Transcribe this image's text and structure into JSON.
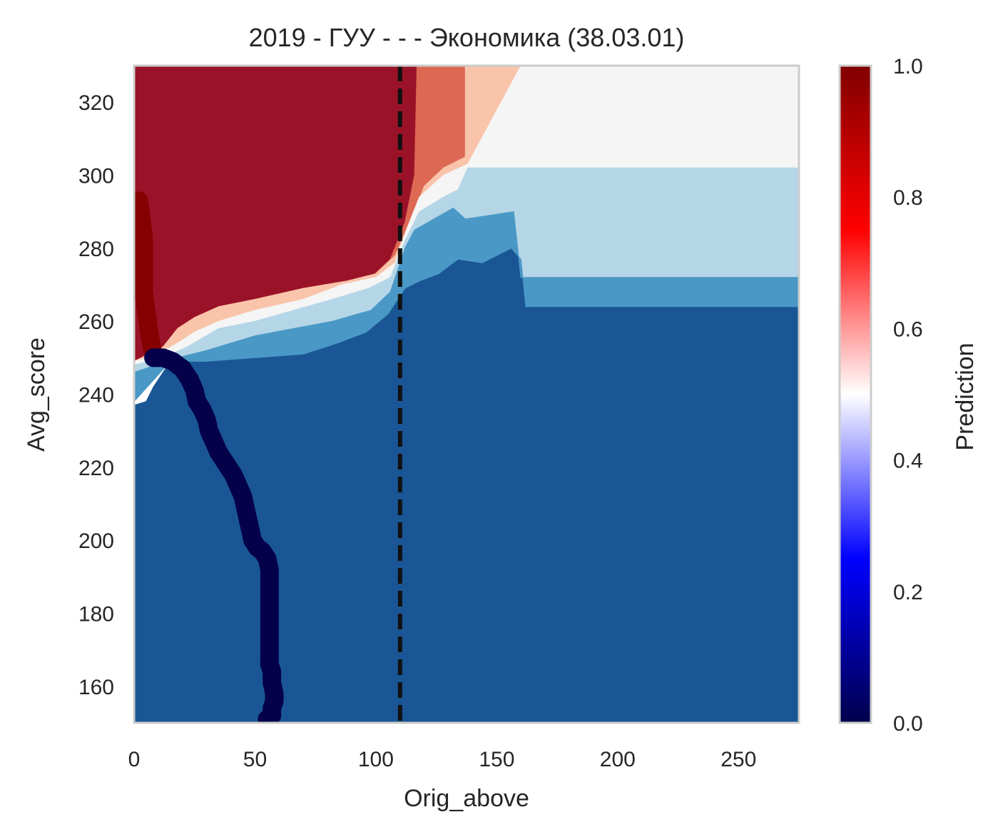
{
  "chart_data": {
    "type": "heatmap",
    "title": "2019 - ГУУ - - - Экономика (38.03.01)",
    "xlabel": "Orig_above",
    "ylabel": "Avg_score",
    "colorbar_label": "Prediction",
    "xlim": [
      0,
      275
    ],
    "ylim": [
      150,
      330
    ],
    "x_ticks": [
      0,
      50,
      100,
      150,
      200,
      250
    ],
    "y_ticks": [
      160,
      180,
      200,
      220,
      240,
      260,
      280,
      300,
      320
    ],
    "colorbar_ticks": [
      "0.0",
      "0.2",
      "0.4",
      "0.6",
      "0.8",
      "1.0"
    ],
    "colorbar_range": [
      0,
      1
    ],
    "grid": false,
    "colors": {
      "level_1": "#1a5695",
      "level_2": "#4a98c5",
      "level_3": "#b5d6e7",
      "level_4": "#f5f5f5",
      "level_5": "#f9c4aa",
      "level_6": "#dd6854",
      "level_7": "#9a1228",
      "threshold_line": "#111111",
      "points": "#05004a",
      "left_edge_points": "#850000",
      "frame": "#cccccc"
    },
    "threshold_x": 110,
    "colorbar_gradient": [
      "#00004c",
      "#0000ff",
      "#ffffff",
      "#ff0000",
      "#800000"
    ],
    "regions": [
      {
        "name": "level_7",
        "polygon": [
          [
            0,
            330
          ],
          [
            117,
            330
          ],
          [
            116,
            300
          ],
          [
            112,
            287
          ],
          [
            109,
            282
          ],
          [
            106,
            277
          ],
          [
            98,
            272
          ],
          [
            86,
            270
          ],
          [
            68,
            268
          ],
          [
            48,
            264
          ],
          [
            35,
            263
          ],
          [
            25,
            260
          ],
          [
            18,
            256
          ],
          [
            12,
            252
          ],
          [
            5,
            250
          ],
          [
            0,
            249
          ]
        ]
      },
      {
        "name": "level_6",
        "polygon": [
          [
            117,
            330
          ],
          [
            137,
            330
          ],
          [
            137,
            305
          ],
          [
            128,
            302
          ],
          [
            120,
            297
          ],
          [
            116,
            290
          ],
          [
            112,
            284
          ],
          [
            108,
            278
          ],
          [
            100,
            273
          ],
          [
            88,
            271
          ],
          [
            70,
            269
          ],
          [
            50,
            266
          ],
          [
            35,
            264
          ],
          [
            25,
            261
          ],
          [
            18,
            258
          ],
          [
            12,
            253
          ],
          [
            0,
            249
          ],
          [
            0,
            249
          ],
          [
            5,
            250
          ],
          [
            12,
            252
          ],
          [
            18,
            256
          ],
          [
            25,
            260
          ],
          [
            35,
            263
          ],
          [
            48,
            264
          ],
          [
            68,
            268
          ],
          [
            86,
            270
          ],
          [
            98,
            272
          ],
          [
            106,
            277
          ],
          [
            109,
            282
          ],
          [
            112,
            287
          ],
          [
            116,
            300
          ]
        ]
      },
      {
        "name": "level_5",
        "polygon": [
          [
            137,
            330
          ],
          [
            160,
            330
          ],
          [
            160,
            303
          ],
          [
            138,
            303
          ],
          [
            128,
            300
          ],
          [
            118,
            294
          ],
          [
            112,
            284
          ],
          [
            108,
            276
          ],
          [
            100,
            272
          ],
          [
            86,
            270
          ],
          [
            70,
            266
          ],
          [
            50,
            263
          ],
          [
            35,
            260
          ],
          [
            25,
            257
          ],
          [
            18,
            254
          ],
          [
            10,
            251
          ],
          [
            0,
            249
          ],
          [
            0,
            249
          ],
          [
            12,
            253
          ],
          [
            18,
            258
          ],
          [
            25,
            261
          ],
          [
            35,
            264
          ],
          [
            50,
            266
          ],
          [
            70,
            269
          ],
          [
            88,
            271
          ],
          [
            100,
            273
          ],
          [
            108,
            278
          ],
          [
            112,
            284
          ],
          [
            116,
            290
          ],
          [
            120,
            297
          ],
          [
            128,
            302
          ],
          [
            137,
            305
          ]
        ]
      },
      {
        "name": "level_4",
        "polygon": [
          [
            160,
            330
          ],
          [
            275,
            330
          ],
          [
            275,
            302
          ],
          [
            160,
            302
          ],
          [
            138,
            302
          ],
          [
            134,
            296
          ],
          [
            128,
            294
          ],
          [
            118,
            290
          ],
          [
            112,
            282
          ],
          [
            106,
            272
          ],
          [
            97,
            269
          ],
          [
            82,
            266
          ],
          [
            66,
            263
          ],
          [
            50,
            260
          ],
          [
            35,
            258
          ],
          [
            22,
            253
          ],
          [
            12,
            250
          ],
          [
            0,
            248
          ],
          [
            0,
            249
          ],
          [
            10,
            251
          ],
          [
            18,
            254
          ],
          [
            25,
            257
          ],
          [
            35,
            260
          ],
          [
            50,
            263
          ],
          [
            70,
            266
          ],
          [
            86,
            270
          ],
          [
            100,
            272
          ],
          [
            108,
            276
          ],
          [
            112,
            284
          ],
          [
            118,
            294
          ],
          [
            128,
            300
          ],
          [
            138,
            303
          ]
        ]
      },
      {
        "name": "level_3",
        "polygon": [
          [
            160,
            302
          ],
          [
            275,
            302
          ],
          [
            275,
            272
          ],
          [
            160,
            272
          ],
          [
            157,
            290
          ],
          [
            137,
            288
          ],
          [
            132,
            291
          ],
          [
            124,
            288
          ],
          [
            116,
            285
          ],
          [
            112,
            280
          ],
          [
            106,
            268
          ],
          [
            98,
            263
          ],
          [
            82,
            260
          ],
          [
            66,
            258
          ],
          [
            50,
            256
          ],
          [
            30,
            252
          ],
          [
            18,
            250
          ],
          [
            0,
            246
          ],
          [
            0,
            248
          ],
          [
            12,
            250
          ],
          [
            22,
            253
          ],
          [
            35,
            258
          ],
          [
            50,
            260
          ],
          [
            66,
            263
          ],
          [
            82,
            266
          ],
          [
            97,
            269
          ],
          [
            106,
            272
          ],
          [
            112,
            282
          ],
          [
            118,
            290
          ],
          [
            128,
            294
          ],
          [
            134,
            296
          ],
          [
            138,
            302
          ]
        ]
      },
      {
        "name": "level_2",
        "polygon": [
          [
            160,
            272
          ],
          [
            275,
            272
          ],
          [
            275,
            264
          ],
          [
            162,
            264
          ],
          [
            160,
            277
          ],
          [
            156,
            280
          ],
          [
            144,
            276
          ],
          [
            134,
            277
          ],
          [
            126,
            273
          ],
          [
            118,
            271
          ],
          [
            112,
            269
          ],
          [
            105,
            262
          ],
          [
            96,
            257
          ],
          [
            84,
            254
          ],
          [
            70,
            251
          ],
          [
            50,
            250
          ],
          [
            30,
            249
          ],
          [
            15,
            249
          ],
          [
            0,
            238
          ],
          [
            0,
            246
          ],
          [
            18,
            250
          ],
          [
            30,
            252
          ],
          [
            50,
            256
          ],
          [
            66,
            258
          ],
          [
            82,
            260
          ],
          [
            98,
            263
          ],
          [
            106,
            268
          ],
          [
            112,
            280
          ],
          [
            116,
            285
          ],
          [
            124,
            288
          ],
          [
            132,
            291
          ],
          [
            137,
            288
          ],
          [
            157,
            290
          ]
        ]
      },
      {
        "name": "level_1",
        "polygon": [
          [
            0,
            150
          ],
          [
            275,
            150
          ],
          [
            275,
            264
          ],
          [
            162,
            264
          ],
          [
            160,
            277
          ],
          [
            156,
            280
          ],
          [
            154,
            283
          ],
          [
            150,
            283
          ],
          [
            148,
            280
          ],
          [
            144,
            276
          ],
          [
            134,
            277
          ],
          [
            126,
            273
          ],
          [
            118,
            271
          ],
          [
            112,
            269
          ],
          [
            105,
            262
          ],
          [
            96,
            257
          ],
          [
            84,
            254
          ],
          [
            70,
            251
          ],
          [
            50,
            250
          ],
          [
            30,
            249
          ],
          [
            15,
            249
          ],
          [
            8,
            242
          ],
          [
            5,
            238
          ],
          [
            0,
            237
          ]
        ]
      }
    ],
    "point_path": [
      [
        8,
        250
      ],
      [
        12,
        250
      ],
      [
        16,
        249
      ],
      [
        20,
        247
      ],
      [
        23,
        244
      ],
      [
        25,
        241
      ],
      [
        26,
        238
      ],
      [
        28,
        236
      ],
      [
        30,
        233
      ],
      [
        31,
        230
      ],
      [
        33,
        227
      ],
      [
        35,
        224
      ],
      [
        38,
        221
      ],
      [
        41,
        218
      ],
      [
        43,
        215
      ],
      [
        45,
        212
      ],
      [
        46,
        209
      ],
      [
        47,
        206
      ],
      [
        48,
        203
      ],
      [
        49,
        200
      ],
      [
        51,
        198
      ],
      [
        53,
        197
      ],
      [
        55,
        195
      ],
      [
        56,
        192
      ],
      [
        56,
        189
      ],
      [
        56,
        186
      ],
      [
        56,
        183
      ],
      [
        56,
        180
      ],
      [
        56,
        177
      ],
      [
        56,
        174
      ],
      [
        56,
        171
      ],
      [
        56,
        168
      ],
      [
        56,
        166
      ],
      [
        57,
        164
      ],
      [
        57,
        161
      ],
      [
        58,
        158
      ],
      [
        58,
        156
      ],
      [
        57,
        154
      ],
      [
        57,
        152
      ],
      [
        55,
        151
      ]
    ],
    "left_edge_path": [
      [
        2,
        293
      ],
      [
        3,
        288
      ],
      [
        4,
        283
      ],
      [
        4,
        278
      ],
      [
        4,
        273
      ],
      [
        4,
        268
      ],
      [
        5,
        263
      ],
      [
        6,
        258
      ],
      [
        7,
        254
      ],
      [
        8,
        251
      ]
    ]
  }
}
